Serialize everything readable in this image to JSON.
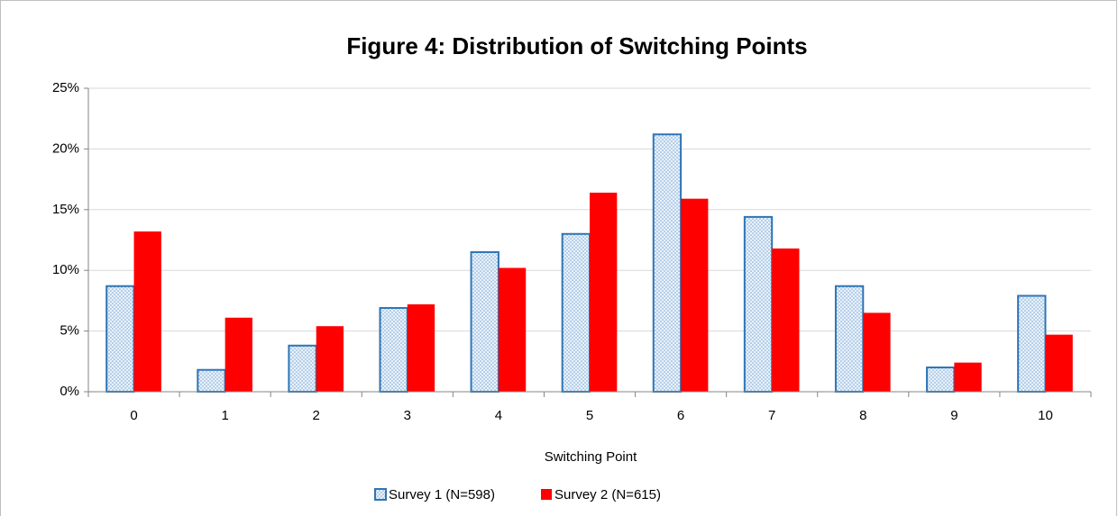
{
  "chart_data": {
    "type": "bar",
    "title": "Figure 4: Distribution of Switching Points",
    "x_label": "Switching Point",
    "categories": [
      "0",
      "1",
      "2",
      "3",
      "4",
      "5",
      "6",
      "7",
      "8",
      "9",
      "10"
    ],
    "series": [
      {
        "name": "Survey 1 (N=598)",
        "color": "#2e75b6",
        "pattern": "dotted",
        "values": [
          8.7,
          1.8,
          3.8,
          6.9,
          11.5,
          13.0,
          21.2,
          14.4,
          8.7,
          2.0,
          7.9
        ]
      },
      {
        "name": "Survey 2 (N=615)",
        "color": "#ff0000",
        "values": [
          13.2,
          6.1,
          5.4,
          7.2,
          10.2,
          16.4,
          15.9,
          11.8,
          6.5,
          2.4,
          4.7
        ]
      }
    ],
    "ylim": [
      0,
      25
    ],
    "yticks": [
      {
        "value": 0,
        "label": "0%"
      },
      {
        "value": 5,
        "label": "5%"
      },
      {
        "value": 10,
        "label": "10%"
      },
      {
        "value": 15,
        "label": "15%"
      },
      {
        "value": 20,
        "label": "20%"
      },
      {
        "value": 25,
        "label": "25%"
      }
    ],
    "grid": true,
    "legend": "bottom"
  }
}
